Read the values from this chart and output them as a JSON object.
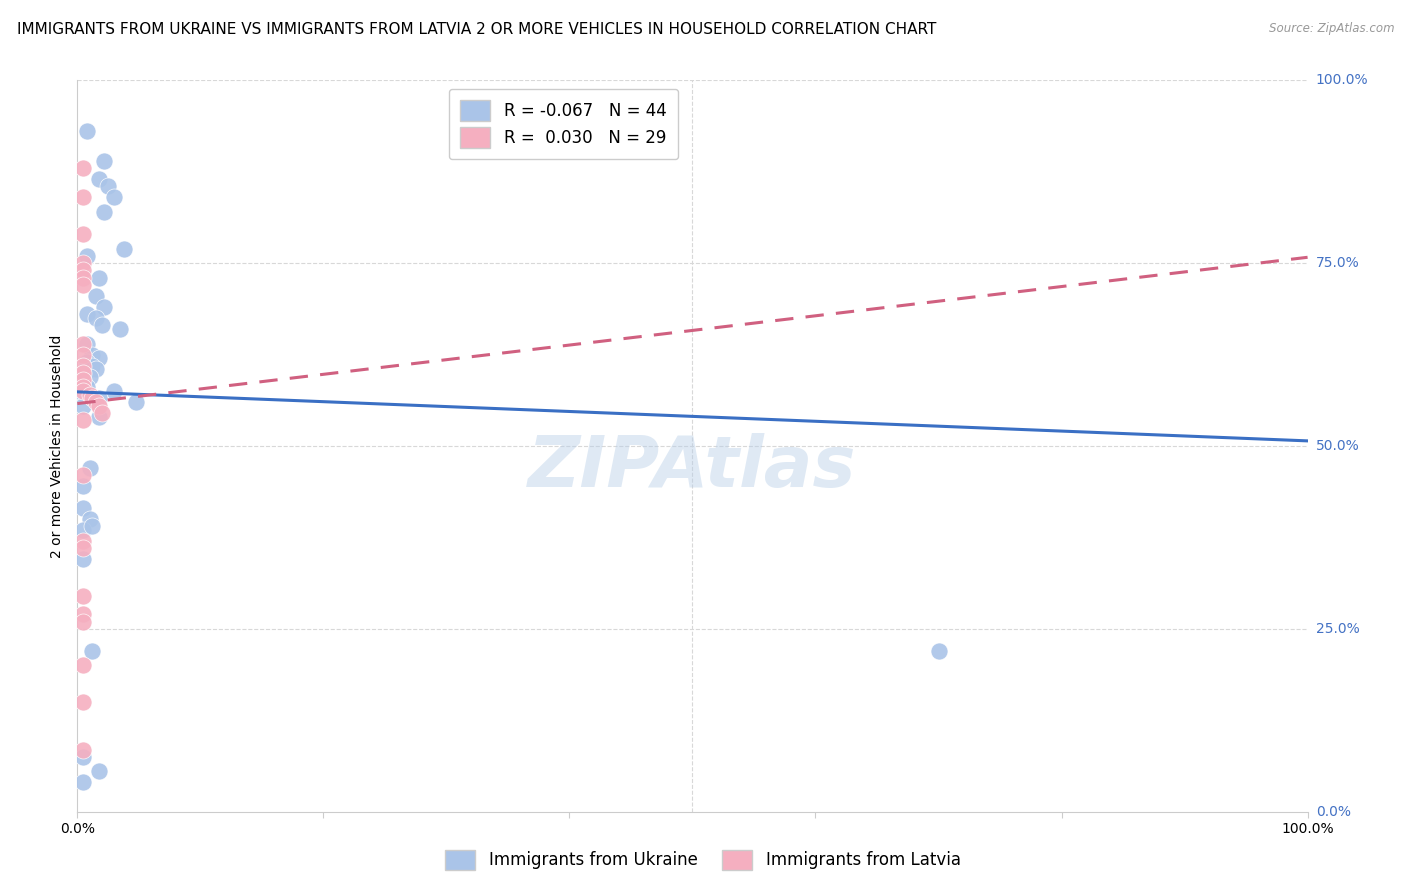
{
  "title": "IMMIGRANTS FROM UKRAINE VS IMMIGRANTS FROM LATVIA 2 OR MORE VEHICLES IN HOUSEHOLD CORRELATION CHART",
  "source": "Source: ZipAtlas.com",
  "ylabel": "2 or more Vehicles in Household",
  "xlim": [
    0,
    1
  ],
  "ylim": [
    0,
    1
  ],
  "legend_ukraine_r": "-0.067",
  "legend_ukraine_n": "44",
  "legend_latvia_r": "0.030",
  "legend_latvia_n": "29",
  "ukraine_color": "#aac4e8",
  "latvia_color": "#f5afc0",
  "ukraine_line_color": "#3a6fc4",
  "latvia_line_color": "#d06080",
  "ukraine_scatter_x": [
    0.008,
    0.022,
    0.018,
    0.025,
    0.03,
    0.022,
    0.038,
    0.008,
    0.018,
    0.015,
    0.022,
    0.008,
    0.015,
    0.02,
    0.035,
    0.008,
    0.012,
    0.018,
    0.008,
    0.012,
    0.015,
    0.005,
    0.01,
    0.005,
    0.008,
    0.03,
    0.005,
    0.01,
    0.018,
    0.048,
    0.005,
    0.018,
    0.01,
    0.005,
    0.005,
    0.01,
    0.005,
    0.005,
    0.012,
    0.012,
    0.7,
    0.005,
    0.018,
    0.005
  ],
  "ukraine_scatter_y": [
    0.93,
    0.89,
    0.865,
    0.855,
    0.84,
    0.82,
    0.77,
    0.76,
    0.73,
    0.705,
    0.69,
    0.68,
    0.675,
    0.665,
    0.66,
    0.64,
    0.625,
    0.62,
    0.615,
    0.61,
    0.605,
    0.6,
    0.595,
    0.59,
    0.58,
    0.575,
    0.572,
    0.568,
    0.565,
    0.56,
    0.555,
    0.54,
    0.47,
    0.445,
    0.415,
    0.4,
    0.385,
    0.345,
    0.39,
    0.22,
    0.22,
    0.075,
    0.055,
    0.04
  ],
  "latvia_scatter_x": [
    0.005,
    0.005,
    0.005,
    0.005,
    0.005,
    0.005,
    0.005,
    0.005,
    0.005,
    0.005,
    0.005,
    0.005,
    0.005,
    0.005,
    0.01,
    0.012,
    0.015,
    0.018,
    0.005,
    0.005,
    0.005,
    0.005,
    0.005,
    0.005,
    0.02,
    0.005,
    0.005,
    0.005,
    0.005
  ],
  "latvia_scatter_y": [
    0.88,
    0.84,
    0.79,
    0.75,
    0.74,
    0.73,
    0.72,
    0.64,
    0.625,
    0.61,
    0.6,
    0.59,
    0.58,
    0.575,
    0.57,
    0.565,
    0.56,
    0.555,
    0.535,
    0.46,
    0.37,
    0.36,
    0.295,
    0.27,
    0.545,
    0.26,
    0.2,
    0.085,
    0.15
  ],
  "ukraine_trend_x": [
    0.0,
    1.0
  ],
  "ukraine_trend_y": [
    0.574,
    0.507
  ],
  "latvia_trend_x": [
    0.0,
    1.0
  ],
  "latvia_trend_y": [
    0.558,
    0.758
  ],
  "watermark": "ZIPAtlas",
  "background_color": "#ffffff",
  "grid_color": "#d8d8d8",
  "ytick_labels_right": [
    "100.0%",
    "75.0%",
    "50.0%",
    "25.0%",
    "0.0%"
  ],
  "ytick_positions_right": [
    1.0,
    0.75,
    0.5,
    0.25,
    0.0
  ],
  "title_fontsize": 11,
  "axis_label_fontsize": 10,
  "tick_fontsize": 10,
  "legend_fontsize": 12
}
